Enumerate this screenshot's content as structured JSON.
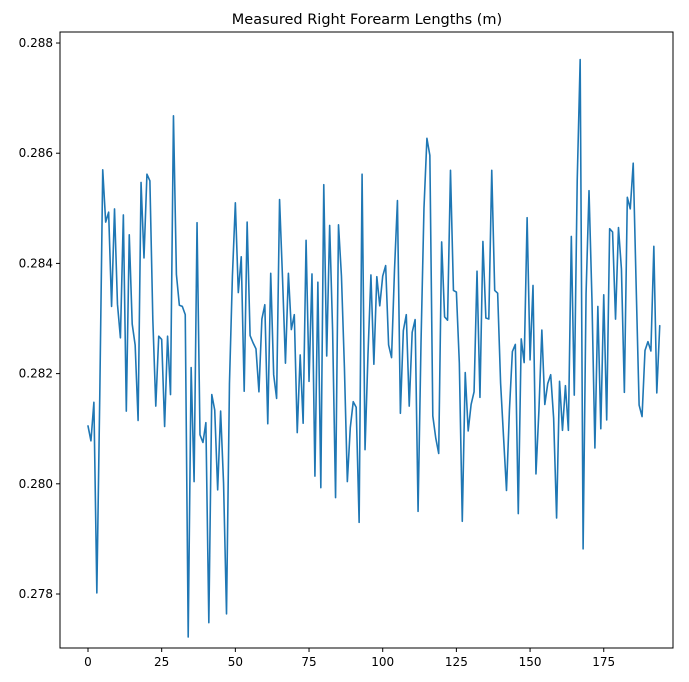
{
  "chart_data": {
    "type": "line",
    "title": "Measured Right Forearm Lengths (m)",
    "xlabel": "",
    "ylabel": "",
    "xlim": [
      -9.5,
      198.5
    ],
    "ylim": [
      0.27702,
      0.2882
    ],
    "x_ticks": [
      0,
      25,
      50,
      75,
      100,
      125,
      150,
      175
    ],
    "x_tick_labels": [
      "0",
      "25",
      "50",
      "75",
      "100",
      "125",
      "150",
      "175"
    ],
    "y_ticks": [
      0.278,
      0.28,
      0.282,
      0.284,
      0.286,
      0.288
    ],
    "y_tick_labels": [
      "0.278",
      "0.280",
      "0.282",
      "0.284",
      "0.286",
      "0.288"
    ],
    "grid": false,
    "legend": "none",
    "colors": {
      "series": "#1f77b4"
    },
    "series": [
      {
        "values": [
          0.28105,
          0.28078,
          0.28148,
          0.27802,
          0.28162,
          0.2857,
          0.28475,
          0.28493,
          0.28322,
          0.28499,
          0.28326,
          0.28265,
          0.28488,
          0.28132,
          0.28452,
          0.2829,
          0.28252,
          0.28115,
          0.28547,
          0.2841,
          0.28562,
          0.2855,
          0.28298,
          0.28141,
          0.28268,
          0.28262,
          0.28104,
          0.28268,
          0.28162,
          0.28668,
          0.2838,
          0.28324,
          0.28322,
          0.28307,
          0.27722,
          0.28211,
          0.28004,
          0.28474,
          0.28089,
          0.28075,
          0.28111,
          0.27748,
          0.28162,
          0.28134,
          0.27989,
          0.28132,
          0.28001,
          0.27764,
          0.28182,
          0.28377,
          0.2851,
          0.28347,
          0.28412,
          0.28168,
          0.28475,
          0.28269,
          0.28256,
          0.28245,
          0.28167,
          0.28299,
          0.28325,
          0.28109,
          0.28382,
          0.28198,
          0.28155,
          0.28516,
          0.28374,
          0.28219,
          0.28382,
          0.2828,
          0.28307,
          0.28093,
          0.28234,
          0.2811,
          0.28442,
          0.28186,
          0.28381,
          0.28014,
          0.28366,
          0.27993,
          0.28543,
          0.28232,
          0.28469,
          0.28278,
          0.27975,
          0.2847,
          0.28377,
          0.28212,
          0.28004,
          0.28102,
          0.28149,
          0.28139,
          0.2793,
          0.28562,
          0.28062,
          0.28234,
          0.28379,
          0.28217,
          0.28376,
          0.28323,
          0.28377,
          0.28396,
          0.28252,
          0.28229,
          0.28388,
          0.28514,
          0.28128,
          0.28278,
          0.28307,
          0.28141,
          0.28275,
          0.28298,
          0.2795,
          0.28257,
          0.285,
          0.28627,
          0.28596,
          0.28123,
          0.28083,
          0.28055,
          0.28439,
          0.28303,
          0.28297,
          0.28569,
          0.28351,
          0.28348,
          0.28219,
          0.27932,
          0.28202,
          0.28096,
          0.28144,
          0.28167,
          0.28386,
          0.28157,
          0.2844,
          0.28301,
          0.28299,
          0.28569,
          0.28351,
          0.28346,
          0.28183,
          0.28085,
          0.27988,
          0.28134,
          0.2824,
          0.28253,
          0.27946,
          0.28263,
          0.2822,
          0.28483,
          0.28225,
          0.2836,
          0.28018,
          0.28133,
          0.28279,
          0.28144,
          0.28182,
          0.28198,
          0.28119,
          0.27938,
          0.28186,
          0.28097,
          0.28178,
          0.28097,
          0.28449,
          0.28161,
          0.28551,
          0.2877,
          0.27882,
          0.28345,
          0.28532,
          0.28335,
          0.28065,
          0.28322,
          0.281,
          0.28343,
          0.28116,
          0.28463,
          0.28457,
          0.28299,
          0.28465,
          0.2839,
          0.28166,
          0.2852,
          0.28499,
          0.28582,
          0.28359,
          0.28143,
          0.28122,
          0.28242,
          0.28258,
          0.28241,
          0.28431,
          0.28165,
          0.28287
        ]
      }
    ]
  }
}
